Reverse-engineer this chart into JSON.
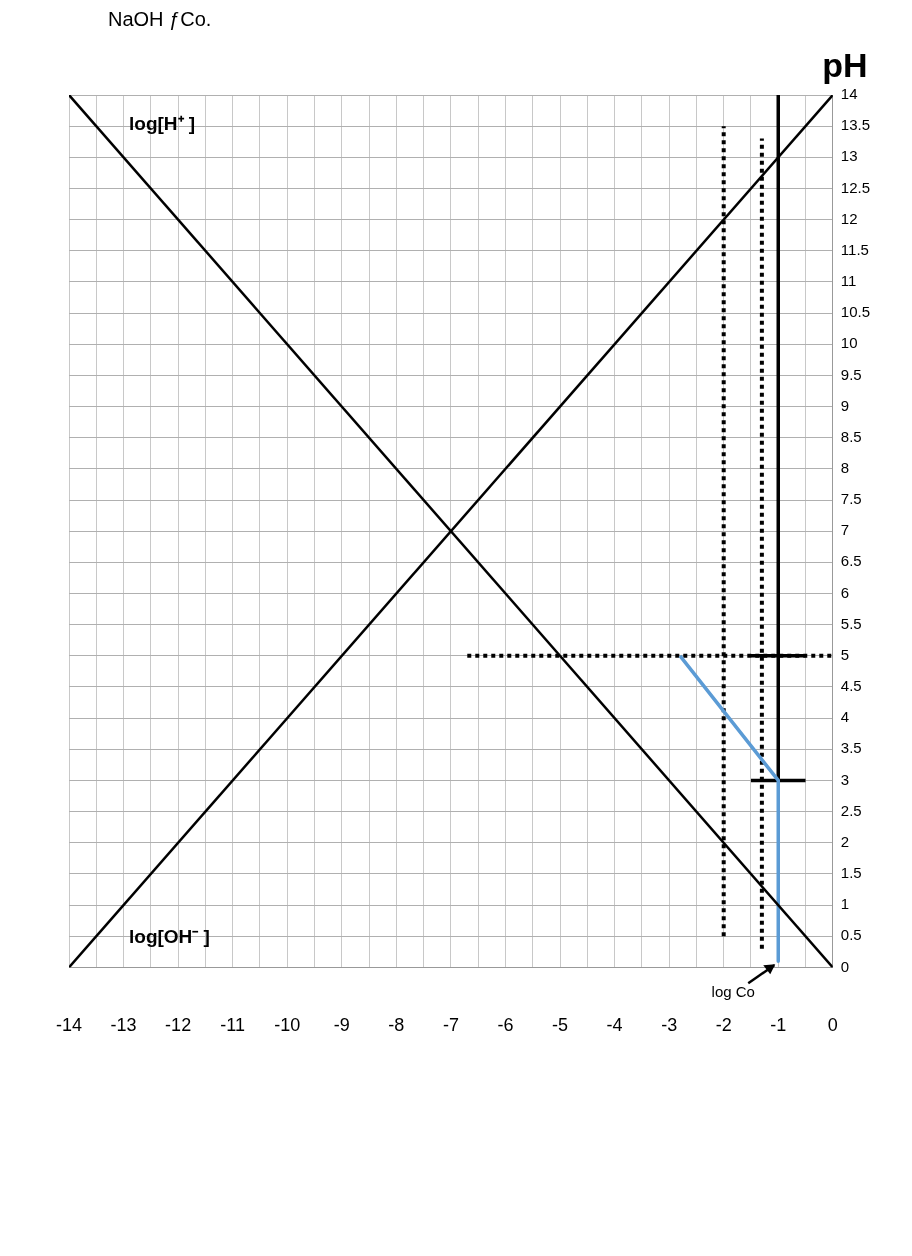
{
  "chart_data": {
    "type": "line",
    "title": "NaOH ƒCo.",
    "ylabel": "pH",
    "xlim": [
      -14,
      0
    ],
    "xticks": [
      -14,
      {
        "value": -13.5,
        "label": null
      },
      -13,
      {
        "value": -12.5,
        "label": null
      },
      -12,
      {
        "value": -11.5,
        "label": null
      },
      -11,
      {
        "value": -10.5,
        "label": null
      },
      -10,
      {
        "value": -9.5,
        "label": null
      },
      -9,
      {
        "value": -8.5,
        "label": null
      },
      -8,
      {
        "value": -7.5,
        "label": null
      },
      -7,
      {
        "value": -6.5,
        "label": null
      },
      -6,
      {
        "value": -5.5,
        "label": null
      },
      -5,
      {
        "value": -4.5,
        "label": null
      },
      -4,
      {
        "value": -3.5,
        "label": null
      },
      -3,
      {
        "value": -2.5,
        "label": null
      },
      -2,
      {
        "value": -1.5,
        "label": null
      },
      -1,
      {
        "value": -0.5,
        "label": null
      },
      0
    ],
    "ylim": [
      0,
      14
    ],
    "yticks": [
      0,
      0.5,
      1,
      1.5,
      2,
      2.5,
      3,
      3.5,
      4,
      4.5,
      5,
      5.5,
      6,
      6.5,
      7,
      7.5,
      8,
      8.5,
      9,
      9.5,
      10,
      10.5,
      11,
      11.5,
      12,
      12.5,
      13,
      13.5,
      14
    ],
    "grid": true,
    "legend": false,
    "marker": "none",
    "series": [
      {
        "name": "log[H⁺ ]",
        "color": "#000000",
        "x": [
          -14,
          0
        ],
        "values": [
          14,
          0
        ],
        "line_style": "solid"
      },
      {
        "name": "log[OH⁻ ]",
        "color": "#000000",
        "x": [
          -14,
          0
        ],
        "values": [
          0,
          14
        ],
        "line_style": "solid"
      },
      {
        "color": "#5b9bd5",
        "x": [
          -2.8,
          -1,
          -1
        ],
        "values": [
          5,
          3,
          0.1
        ],
        "line_style": "solid"
      },
      {
        "color": "#000000",
        "x": [
          -2,
          -2
        ],
        "values": [
          0.5,
          13.5
        ],
        "line_style": "dotted"
      },
      {
        "color": "#000000",
        "x": [
          -1.3,
          -1.3
        ],
        "values": [
          0.3,
          13.3
        ],
        "line_style": "dotted"
      },
      {
        "color": "#000000",
        "x": [
          -6.7,
          0
        ],
        "values": [
          5,
          5
        ],
        "line_style": "dotted"
      },
      {
        "color": "#000000",
        "x": [
          -1,
          -1
        ],
        "values": [
          3,
          14
        ],
        "line_style": "solid"
      },
      {
        "color": "#000000",
        "x": [
          -1.5,
          -0.5
        ],
        "values": [
          5,
          5
        ],
        "line_style": "solid"
      },
      {
        "color": "#000000",
        "x": [
          -1.5,
          -0.5
        ],
        "values": [
          3,
          3
        ],
        "line_style": "solid"
      }
    ],
    "annotations": [
      {
        "text": "log Co",
        "x": -1,
        "y": 0.1
      }
    ]
  }
}
